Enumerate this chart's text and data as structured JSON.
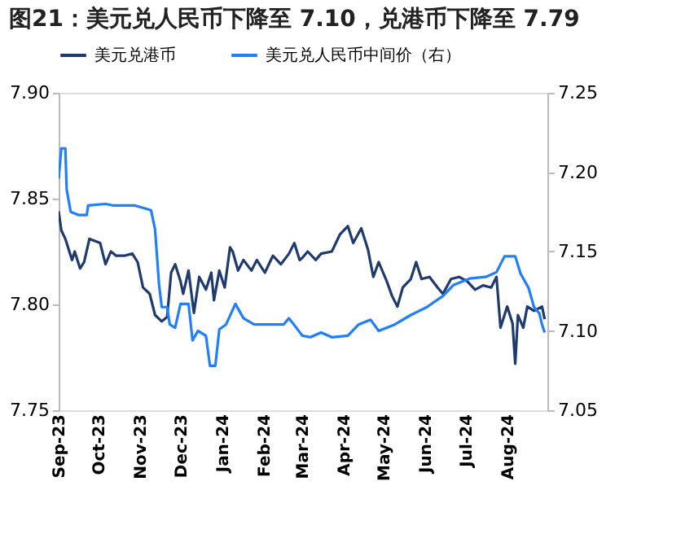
{
  "chart_data": {
    "type": "line",
    "title": "图21：美元兑人民币下降至 7.10，兑港币下降至 7.79",
    "xlim": [
      "2023-09-01",
      "2024-08-31"
    ],
    "xticks": [
      {
        "value": "2023-09-01",
        "label": "Sep-23"
      },
      {
        "value": "2023-10-01",
        "label": "Oct-23"
      },
      {
        "value": "2023-11-01",
        "label": "Nov-23"
      },
      {
        "value": "2023-12-01",
        "label": "Dec-23"
      },
      {
        "value": "2024-01-01",
        "label": "Jan-24"
      },
      {
        "value": "2024-02-01",
        "label": "Feb-24"
      },
      {
        "value": "2024-03-01",
        "label": "Mar-24"
      },
      {
        "value": "2024-04-01",
        "label": "Apr-24"
      },
      {
        "value": "2024-05-01",
        "label": "May-24"
      },
      {
        "value": "2024-06-01",
        "label": "Jun-24"
      },
      {
        "value": "2024-07-01",
        "label": "Jul-24"
      },
      {
        "value": "2024-08-01",
        "label": "Aug-24"
      }
    ],
    "ylim": [
      7.75,
      7.9
    ],
    "yticks": [
      {
        "value": 7.75,
        "label": "7.75"
      },
      {
        "value": 7.8,
        "label": "7.80"
      },
      {
        "value": 7.85,
        "label": "7.85"
      },
      {
        "value": 7.9,
        "label": "7.90"
      }
    ],
    "y2lim": [
      7.05,
      7.25
    ],
    "y2ticks": [
      {
        "value": 7.05,
        "label": "7.05"
      },
      {
        "value": 7.1,
        "label": "7.10"
      },
      {
        "value": 7.15,
        "label": "7.15"
      },
      {
        "value": 7.2,
        "label": "7.20"
      },
      {
        "value": 7.25,
        "label": "7.25"
      }
    ],
    "legend": "top",
    "grid": false,
    "marker": "none",
    "line_style": "solid",
    "series": [
      {
        "name": "美元兑港币",
        "color": "#1f3a6e",
        "axis": "y",
        "x": [
          "2023-09-01",
          "2023-09-03",
          "2023-09-06",
          "2023-09-08",
          "2023-09-11",
          "2023-09-13",
          "2023-09-17",
          "2023-09-20",
          "2023-09-24",
          "2023-09-28",
          "2023-10-02",
          "2023-10-06",
          "2023-10-10",
          "2023-10-14",
          "2023-10-20",
          "2023-10-26",
          "2023-10-30",
          "2023-11-03",
          "2023-11-08",
          "2023-11-12",
          "2023-11-17",
          "2023-11-21",
          "2023-11-24",
          "2023-11-27",
          "2023-12-01",
          "2023-12-03",
          "2023-12-07",
          "2023-12-11",
          "2023-12-15",
          "2023-12-20",
          "2023-12-24",
          "2023-12-26",
          "2023-12-30",
          "2024-01-03",
          "2024-01-07",
          "2024-01-09",
          "2024-01-13",
          "2024-01-17",
          "2024-01-23",
          "2024-01-27",
          "2024-02-02",
          "2024-02-08",
          "2024-02-14",
          "2024-02-20",
          "2024-02-24",
          "2024-02-28",
          "2024-03-01",
          "2024-03-05",
          "2024-03-11",
          "2024-03-15",
          "2024-03-23",
          "2024-03-29",
          "2024-04-04",
          "2024-04-08",
          "2024-04-14",
          "2024-04-19",
          "2024-04-23",
          "2024-04-27",
          "2024-05-03",
          "2024-05-07",
          "2024-05-11",
          "2024-05-15",
          "2024-05-21",
          "2024-05-25",
          "2024-05-29",
          "2024-06-04",
          "2024-06-10",
          "2024-06-14",
          "2024-06-20",
          "2024-06-26",
          "2024-07-02",
          "2024-07-08",
          "2024-07-14",
          "2024-07-20",
          "2024-07-24",
          "2024-07-27",
          "2024-08-01",
          "2024-08-05",
          "2024-08-07",
          "2024-08-09",
          "2024-08-13",
          "2024-08-16",
          "2024-08-21",
          "2024-08-27",
          "2024-08-29"
        ],
        "values": [
          7.844,
          7.835,
          7.831,
          7.827,
          7.821,
          7.825,
          7.817,
          7.82,
          7.831,
          7.83,
          7.829,
          7.819,
          7.825,
          7.823,
          7.823,
          7.824,
          7.82,
          7.808,
          7.805,
          7.795,
          7.792,
          7.794,
          7.815,
          7.819,
          7.811,
          7.805,
          7.816,
          7.796,
          7.813,
          7.807,
          7.815,
          7.802,
          7.816,
          7.808,
          7.827,
          7.825,
          7.816,
          7.821,
          7.816,
          7.821,
          7.815,
          7.823,
          7.819,
          7.824,
          7.829,
          7.821,
          7.822,
          7.825,
          7.821,
          7.824,
          7.825,
          7.833,
          7.837,
          7.829,
          7.836,
          7.826,
          7.813,
          7.82,
          7.811,
          7.804,
          7.799,
          7.808,
          7.812,
          7.82,
          7.812,
          7.813,
          7.808,
          7.805,
          7.812,
          7.813,
          7.811,
          7.807,
          7.809,
          7.808,
          7.813,
          7.789,
          7.799,
          7.791,
          7.772,
          7.795,
          7.789,
          7.799,
          7.797,
          7.799,
          7.793
        ]
      },
      {
        "name": "美元兑人民币中间价（右）",
        "color": "#1f7fff",
        "axis": "y2",
        "x": [
          "2023-09-01",
          "2023-09-03",
          "2023-09-06",
          "2023-09-07",
          "2023-09-10",
          "2023-09-16",
          "2023-09-22",
          "2023-09-23",
          "2023-10-06",
          "2023-10-12",
          "2023-10-28",
          "2023-11-09",
          "2023-11-12",
          "2023-11-15",
          "2023-11-17",
          "2023-11-21",
          "2023-11-23",
          "2023-11-27",
          "2023-12-01",
          "2023-12-07",
          "2023-12-10",
          "2023-12-14",
          "2023-12-20",
          "2023-12-23",
          "2023-12-27",
          "2023-12-30",
          "2024-01-04",
          "2024-01-11",
          "2024-01-17",
          "2024-01-25",
          "2024-02-16",
          "2024-02-20",
          "2024-03-01",
          "2024-03-07",
          "2024-03-15",
          "2024-03-23",
          "2024-04-04",
          "2024-04-12",
          "2024-04-21",
          "2024-04-27",
          "2024-05-09",
          "2024-05-21",
          "2024-06-02",
          "2024-06-14",
          "2024-06-22",
          "2024-07-04",
          "2024-07-16",
          "2024-07-24",
          "2024-07-30",
          "2024-08-07",
          "2024-08-11",
          "2024-08-17",
          "2024-08-21",
          "2024-08-25",
          "2024-08-27",
          "2024-08-29"
        ],
        "values": [
          7.196,
          7.215,
          7.215,
          7.189,
          7.175,
          7.173,
          7.173,
          7.179,
          7.18,
          7.179,
          7.179,
          7.176,
          7.164,
          7.129,
          7.115,
          7.115,
          7.104,
          7.102,
          7.117,
          7.117,
          7.094,
          7.1,
          7.097,
          7.078,
          7.078,
          7.101,
          7.104,
          7.117,
          7.108,
          7.104,
          7.104,
          7.108,
          7.097,
          7.096,
          7.099,
          7.096,
          7.097,
          7.104,
          7.107,
          7.1,
          7.104,
          7.11,
          7.115,
          7.122,
          7.129,
          7.133,
          7.134,
          7.137,
          7.147,
          7.147,
          7.136,
          7.127,
          7.115,
          7.111,
          7.104,
          7.099
        ]
      }
    ]
  }
}
